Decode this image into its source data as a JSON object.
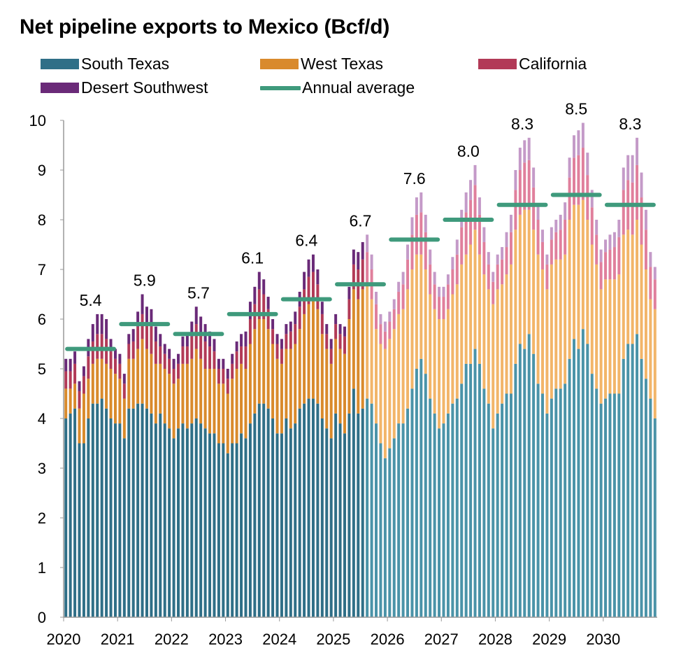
{
  "title": "Net pipeline exports to Mexico (Bcf/d)",
  "legend": {
    "south_texas": "South Texas",
    "west_texas": "West Texas",
    "california": "California",
    "desert_southwest": "Desert Southwest",
    "annual_average": "Annual average"
  },
  "colors": {
    "south_texas": "#2f6f87",
    "west_texas": "#d98a2c",
    "california": "#b23a57",
    "desert_southwest": "#6a2a78",
    "south_texas_forecast": "#4a93a8",
    "west_texas_forecast": "#f2b569",
    "california_forecast": "#e07f9c",
    "desert_southwest_forecast": "#c49ac8",
    "annual_average": "#3f9a7c"
  },
  "chart_data": {
    "type": "bar",
    "stacked": true,
    "frequency": "monthly",
    "x_start": "2020-01",
    "x_end": "2030-12",
    "forecast_start": "2025-08",
    "x_tick_labels": [
      "2020",
      "2021",
      "2022",
      "2023",
      "2024",
      "2025",
      "2026",
      "2027",
      "2028",
      "2029",
      "2030"
    ],
    "y_tick_labels": [
      "0",
      "1",
      "2",
      "3",
      "4",
      "5",
      "6",
      "7",
      "8",
      "9",
      "10"
    ],
    "ylim": [
      0,
      10
    ],
    "title": "Net pipeline exports to Mexico (Bcf/d)",
    "series": [
      {
        "name": "South Texas",
        "values": [
          4.0,
          4.1,
          4.2,
          3.5,
          3.5,
          4.0,
          4.3,
          4.3,
          4.4,
          4.2,
          4.0,
          3.9,
          3.9,
          3.6,
          4.2,
          4.2,
          4.3,
          4.3,
          4.2,
          4.1,
          3.9,
          4.1,
          3.9,
          3.8,
          3.6,
          3.8,
          3.9,
          3.8,
          3.9,
          4.0,
          3.9,
          3.8,
          3.7,
          3.7,
          3.5,
          3.5,
          3.3,
          3.5,
          3.5,
          3.7,
          3.6,
          3.9,
          4.1,
          4.3,
          4.3,
          4.2,
          4.0,
          3.7,
          3.7,
          4.0,
          3.8,
          3.9,
          4.2,
          4.3,
          4.4,
          4.4,
          4.3,
          4.0,
          3.8,
          3.6,
          4.1,
          3.9,
          3.7,
          4.1,
          4.6,
          4.1,
          4.2,
          4.4,
          4.3,
          3.9,
          3.5,
          3.2,
          3.4,
          3.6,
          3.9,
          3.9,
          4.2,
          4.6,
          5.0,
          5.2,
          4.9,
          4.4,
          4.1,
          3.8,
          3.9,
          4.1,
          4.3,
          4.4,
          4.7,
          5.1,
          5.1,
          5.4,
          5.1,
          4.6,
          4.3,
          3.8,
          4.1,
          4.3,
          4.5,
          4.5,
          5.1,
          5.5,
          5.4,
          5.7,
          5.3,
          4.7,
          4.5,
          4.1,
          4.4,
          4.6,
          4.6,
          4.7,
          5.2,
          5.6,
          5.4,
          5.8,
          5.5,
          4.9,
          4.6,
          4.3,
          4.4,
          4.5,
          4.5,
          4.5,
          5.2,
          5.5,
          5.5,
          5.7,
          5.2,
          4.8,
          4.4,
          4.0
        ]
      },
      {
        "name": "West Texas",
        "values": [
          0.6,
          0.5,
          0.5,
          0.7,
          1.0,
          0.8,
          0.8,
          0.9,
          0.8,
          0.9,
          1.0,
          1.0,
          0.9,
          0.8,
          1.0,
          1.0,
          1.1,
          1.3,
          1.2,
          1.2,
          1.2,
          1.0,
          1.1,
          1.1,
          1.1,
          1.0,
          1.2,
          1.3,
          1.3,
          1.4,
          1.3,
          1.2,
          1.3,
          1.3,
          1.2,
          1.2,
          1.2,
          1.3,
          1.5,
          1.4,
          1.4,
          1.6,
          1.7,
          1.7,
          1.7,
          1.6,
          1.5,
          1.5,
          1.4,
          1.4,
          1.6,
          1.6,
          1.6,
          1.8,
          1.9,
          2.0,
          1.9,
          1.7,
          1.6,
          1.5,
          1.5,
          1.5,
          1.6,
          1.9,
          2.0,
          2.3,
          2.4,
          2.3,
          2.1,
          1.9,
          2.0,
          2.2,
          2.2,
          2.2,
          2.2,
          2.3,
          2.4,
          2.4,
          2.3,
          2.1,
          2.1,
          2.1,
          2.1,
          2.2,
          2.1,
          2.1,
          2.2,
          2.3,
          2.4,
          2.2,
          2.4,
          2.4,
          2.2,
          2.3,
          2.3,
          2.5,
          2.5,
          2.4,
          2.4,
          2.6,
          2.7,
          2.6,
          2.8,
          2.5,
          2.5,
          2.6,
          2.5,
          2.5,
          2.7,
          2.6,
          2.6,
          2.6,
          2.8,
          2.7,
          2.9,
          2.6,
          2.5,
          2.6,
          2.5,
          2.3,
          2.4,
          2.3,
          2.3,
          2.4,
          2.5,
          2.3,
          2.2,
          2.3,
          2.3,
          2.2,
          2.0,
          2.2
        ]
      },
      {
        "name": "California",
        "values": [
          0.35,
          0.35,
          0.4,
          0.35,
          0.35,
          0.45,
          0.45,
          0.5,
          0.5,
          0.5,
          0.35,
          0.3,
          0.3,
          0.3,
          0.3,
          0.35,
          0.45,
          0.5,
          0.5,
          0.55,
          0.45,
          0.35,
          0.3,
          0.3,
          0.3,
          0.3,
          0.35,
          0.35,
          0.45,
          0.5,
          0.5,
          0.55,
          0.45,
          0.35,
          0.3,
          0.3,
          0.3,
          0.3,
          0.35,
          0.35,
          0.45,
          0.5,
          0.5,
          0.6,
          0.5,
          0.4,
          0.3,
          0.3,
          0.3,
          0.3,
          0.35,
          0.4,
          0.45,
          0.5,
          0.55,
          0.55,
          0.5,
          0.4,
          0.3,
          0.3,
          0.3,
          0.3,
          0.35,
          0.4,
          0.5,
          0.6,
          0.6,
          0.65,
          0.6,
          0.5,
          0.4,
          0.35,
          0.35,
          0.4,
          0.45,
          0.5,
          0.6,
          0.7,
          0.8,
          0.85,
          0.75,
          0.6,
          0.5,
          0.45,
          0.45,
          0.5,
          0.5,
          0.6,
          0.75,
          0.85,
          0.9,
          0.9,
          0.8,
          0.65,
          0.5,
          0.45,
          0.5,
          0.5,
          0.55,
          0.65,
          0.8,
          0.9,
          0.95,
          1.0,
          0.85,
          0.7,
          0.55,
          0.5,
          0.5,
          0.55,
          0.6,
          0.7,
          0.85,
          0.95,
          1.0,
          1.05,
          0.9,
          0.75,
          0.6,
          0.55,
          0.55,
          0.6,
          0.65,
          0.75,
          0.9,
          1.0,
          1.05,
          1.1,
          0.95,
          0.8,
          0.65,
          0.6
        ]
      },
      {
        "name": "Desert Southwest",
        "values": [
          0.25,
          0.25,
          0.25,
          0.2,
          0.2,
          0.35,
          0.35,
          0.4,
          0.4,
          0.4,
          0.25,
          0.2,
          0.2,
          0.2,
          0.2,
          0.25,
          0.3,
          0.4,
          0.35,
          0.35,
          0.3,
          0.25,
          0.2,
          0.2,
          0.2,
          0.2,
          0.2,
          0.25,
          0.3,
          0.35,
          0.35,
          0.35,
          0.3,
          0.25,
          0.2,
          0.2,
          0.2,
          0.2,
          0.2,
          0.25,
          0.3,
          0.35,
          0.35,
          0.35,
          0.3,
          0.25,
          0.2,
          0.2,
          0.2,
          0.2,
          0.2,
          0.25,
          0.3,
          0.35,
          0.35,
          0.35,
          0.3,
          0.25,
          0.2,
          0.2,
          0.2,
          0.2,
          0.2,
          0.25,
          0.3,
          0.35,
          0.35,
          0.35,
          0.3,
          0.25,
          0.2,
          0.2,
          0.2,
          0.2,
          0.2,
          0.25,
          0.3,
          0.35,
          0.35,
          0.4,
          0.35,
          0.3,
          0.25,
          0.2,
          0.2,
          0.2,
          0.25,
          0.3,
          0.35,
          0.4,
          0.4,
          0.4,
          0.35,
          0.3,
          0.25,
          0.2,
          0.2,
          0.25,
          0.3,
          0.35,
          0.4,
          0.45,
          0.45,
          0.45,
          0.4,
          0.3,
          0.25,
          0.2,
          0.25,
          0.25,
          0.3,
          0.35,
          0.4,
          0.45,
          0.5,
          0.5,
          0.45,
          0.35,
          0.3,
          0.25,
          0.25,
          0.3,
          0.3,
          0.35,
          0.45,
          0.5,
          0.55,
          0.55,
          0.5,
          0.4,
          0.3,
          0.25
        ]
      }
    ],
    "annual_average": {
      "name": "Annual average",
      "years": [
        "2020",
        "2021",
        "2022",
        "2023",
        "2024",
        "2025",
        "2026",
        "2027",
        "2028",
        "2029",
        "2030"
      ],
      "values": [
        5.4,
        5.9,
        5.7,
        6.1,
        6.4,
        6.7,
        7.6,
        8.0,
        8.3,
        8.5,
        8.3
      ],
      "labels": [
        "5.4",
        "5.9",
        "5.7",
        "6.1",
        "6.4",
        "6.7",
        "7.6",
        "8.0",
        "8.3",
        "8.5",
        "8.3"
      ]
    },
    "xlabel": "",
    "ylabel": ""
  }
}
